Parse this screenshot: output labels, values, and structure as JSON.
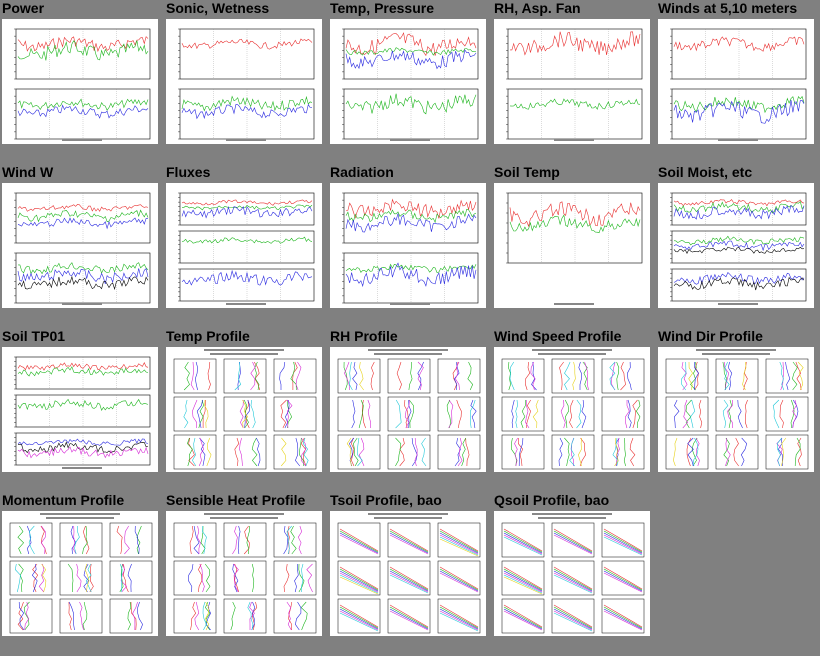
{
  "page": {
    "background": "#808080"
  },
  "thumbnails": [
    {
      "title": "Power",
      "kind": "ts2"
    },
    {
      "title": "Sonic, Wetness",
      "kind": "ts2"
    },
    {
      "title": "Temp, Pressure",
      "kind": "ts2"
    },
    {
      "title": "RH, Asp. Fan",
      "kind": "ts2"
    },
    {
      "title": "Winds at 5,10 meters",
      "kind": "ts2"
    },
    {
      "title": "Wind W",
      "kind": "ts2"
    },
    {
      "title": "Fluxes",
      "kind": "ts3"
    },
    {
      "title": "Radiation",
      "kind": "ts2"
    },
    {
      "title": "Soil Temp",
      "kind": "ts1"
    },
    {
      "title": "Soil Moist, etc",
      "kind": "ts3"
    },
    {
      "title": "Soil TP01",
      "kind": "ts3"
    },
    {
      "title": "Temp Profile",
      "kind": "profile"
    },
    {
      "title": "RH Profile",
      "kind": "profile"
    },
    {
      "title": "Wind Speed Profile",
      "kind": "profile"
    },
    {
      "title": "Wind Dir Profile",
      "kind": "profile"
    },
    {
      "title": "Momentum Profile",
      "kind": "profile"
    },
    {
      "title": "Sensible Heat Profile",
      "kind": "profile"
    },
    {
      "title": "Tsoil Profile, bao",
      "kind": "soilprofile"
    },
    {
      "title": "Qsoil Profile, bao",
      "kind": "soilprofile"
    }
  ],
  "colors": {
    "thumb_bg": "#ffffff",
    "red": "#e83030",
    "green": "#1db51d",
    "blue": "#2a2ae0",
    "black": "#000000",
    "magenta": "#d62ad6",
    "cyan": "#20c8d8",
    "yellow": "#e6d21a",
    "gray": "#888888"
  }
}
